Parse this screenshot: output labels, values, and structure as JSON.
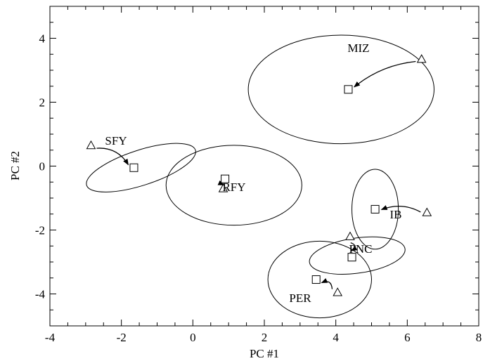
{
  "chart_data": {
    "type": "scatter",
    "title": "",
    "xlabel": "PC #1",
    "ylabel": "PC #2",
    "xlim": [
      -4,
      8
    ],
    "ylim": [
      -5,
      5
    ],
    "xticks": [
      -4,
      -2,
      0,
      2,
      4,
      6,
      8
    ],
    "yticks": [
      -4,
      -2,
      0,
      2,
      4
    ],
    "grid": false,
    "markers": {
      "start": "open triangle",
      "end": "open square"
    },
    "groups": [
      {
        "name": "MIZ",
        "triangle": [
          6.4,
          3.35
        ],
        "square": [
          4.35,
          2.4
        ],
        "ellipse": {
          "center": [
            4.15,
            2.4
          ],
          "rx": 2.6,
          "ry": 1.7,
          "rotate_deg": 0
        }
      },
      {
        "name": "SFY",
        "triangle": [
          -2.85,
          0.65
        ],
        "square": [
          -1.65,
          -0.05
        ],
        "ellipse": {
          "center": [
            -1.45,
            -0.05
          ],
          "rx": 1.6,
          "ry": 0.55,
          "rotate_deg": 18
        }
      },
      {
        "name": "RFY",
        "triangle": [
          0.85,
          -0.7
        ],
        "square": [
          0.9,
          -0.4
        ],
        "ellipse": {
          "center": [
            1.15,
            -0.6
          ],
          "rx": 1.9,
          "ry": 1.25,
          "rotate_deg": 0
        }
      },
      {
        "name": "IB",
        "triangle": [
          6.55,
          -1.45
        ],
        "square": [
          5.1,
          -1.35
        ],
        "ellipse": {
          "center": [
            5.1,
            -1.35
          ],
          "rx": 0.65,
          "ry": 1.25,
          "rotate_deg": 0
        }
      },
      {
        "name": "PNC",
        "triangle": [
          4.4,
          -2.2
        ],
        "square": [
          4.45,
          -2.85
        ],
        "ellipse": {
          "center": [
            4.6,
            -2.8
          ],
          "rx": 1.35,
          "ry": 0.55,
          "rotate_deg": 8
        }
      },
      {
        "name": "PER",
        "triangle": [
          4.05,
          -3.95
        ],
        "square": [
          3.45,
          -3.55
        ],
        "ellipse": {
          "center": [
            3.55,
            -3.55
          ],
          "rx": 1.45,
          "ry": 1.2,
          "rotate_deg": 0
        }
      }
    ]
  }
}
